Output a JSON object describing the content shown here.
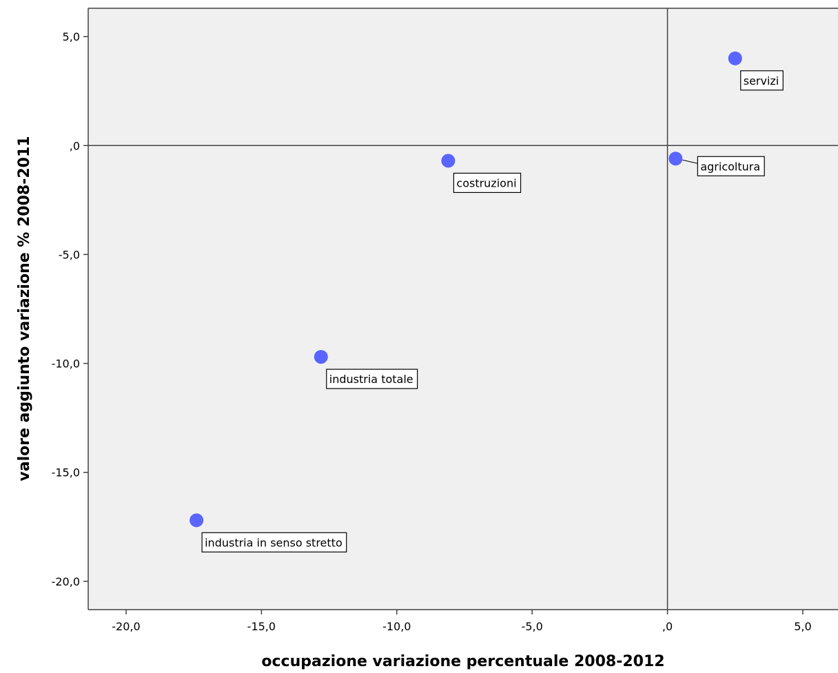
{
  "chart_data": {
    "type": "scatter",
    "xlabel": "occupazione variazione percentuale 2008-2012",
    "ylabel": "valore aggiunto variazione % 2008-2011",
    "xlim": [
      -21.4,
      6.3
    ],
    "ylim": [
      -21.3,
      6.3
    ],
    "x_ticks": [
      {
        "value": -20,
        "label": "-20,0"
      },
      {
        "value": -15,
        "label": "-15,0"
      },
      {
        "value": -10,
        "label": "-10,0"
      },
      {
        "value": -5,
        "label": "-5,0"
      },
      {
        "value": 0,
        "label": ",0"
      },
      {
        "value": 5,
        "label": "5,0"
      }
    ],
    "y_ticks": [
      {
        "value": 5,
        "label": "5,0"
      },
      {
        "value": 0,
        "label": ",0"
      },
      {
        "value": -5,
        "label": "-5,0"
      },
      {
        "value": -10,
        "label": "-10,0"
      },
      {
        "value": -15,
        "label": "-15,0"
      },
      {
        "value": -20,
        "label": "-20,0"
      }
    ],
    "reference_lines": {
      "x": 0,
      "y": 0
    },
    "grid": false,
    "colors": {
      "point": "#5a64ff",
      "plot_background": "#f0f0f0",
      "axis": "#404040"
    },
    "points": [
      {
        "label": "servizi",
        "x": 2.5,
        "y": 4.0
      },
      {
        "label": "agricoltura",
        "x": 0.3,
        "y": -0.6
      },
      {
        "label": "costruzioni",
        "x": -8.1,
        "y": -0.7
      },
      {
        "label": "industria totale",
        "x": -12.8,
        "y": -9.7
      },
      {
        "label": "industria in senso stretto",
        "x": -17.4,
        "y": -17.2
      }
    ]
  }
}
